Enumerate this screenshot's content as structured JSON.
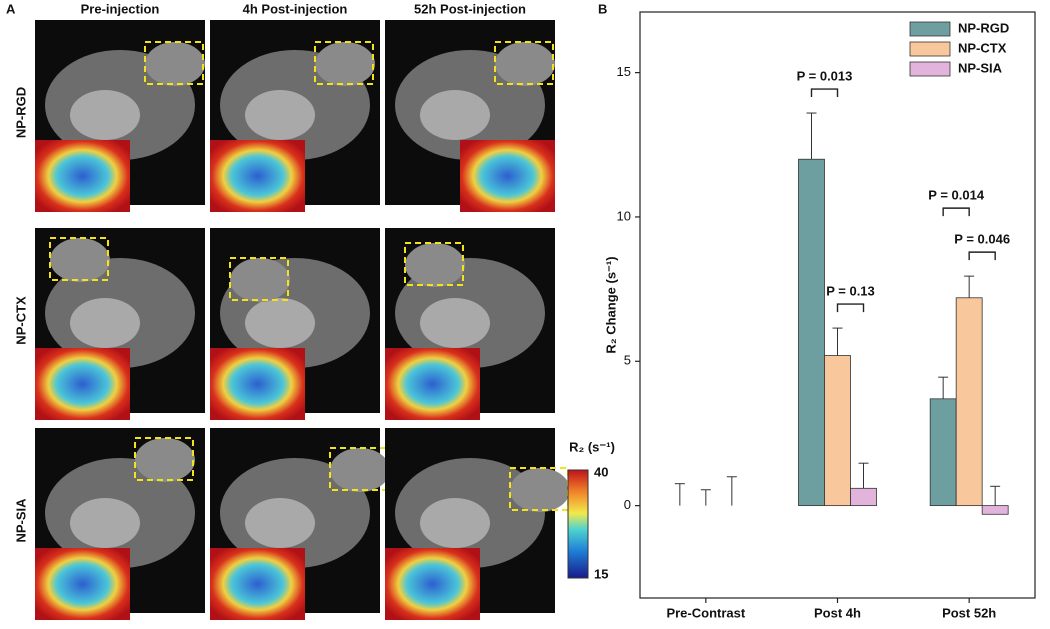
{
  "panel_a": {
    "label": "A",
    "columns": [
      "Pre-injection",
      "4h Post-injection",
      "52h Post-injection"
    ],
    "rows": [
      "NP-RGD",
      "NP-CTX",
      "NP-SIA"
    ],
    "colorbar": {
      "label": "R₂ (s⁻¹)",
      "max": 40,
      "min": 15
    }
  },
  "panel_b": {
    "label": "B"
  },
  "chart_data": {
    "type": "bar",
    "y_label": "R₂ Change (s⁻¹)",
    "categories": [
      "Pre-Contrast",
      "Post 4h",
      "Post 52h"
    ],
    "series": [
      {
        "name": "NP-RGD",
        "color": "#6e9fa0",
        "values": [
          0,
          12.0,
          3.7
        ],
        "errors": [
          0.76,
          1.6,
          0.75
        ]
      },
      {
        "name": "NP-CTX",
        "color": "#f8c89c",
        "values": [
          0,
          5.2,
          7.2
        ],
        "errors": [
          0.55,
          0.95,
          0.75
        ]
      },
      {
        "name": "NP-SIA",
        "color": "#e3b4db",
        "values": [
          0,
          0.6,
          -0.3
        ],
        "errors": [
          1.0,
          0.87,
          0.97
        ]
      }
    ],
    "annotations": [
      "P = 0.013",
      "P = 0.13",
      "P = 0.014",
      "P = 0.046"
    ],
    "ylim": [
      -3.2,
      17.1
    ],
    "yticks": [
      0,
      5,
      10,
      15
    ],
    "legend": "top-right"
  }
}
